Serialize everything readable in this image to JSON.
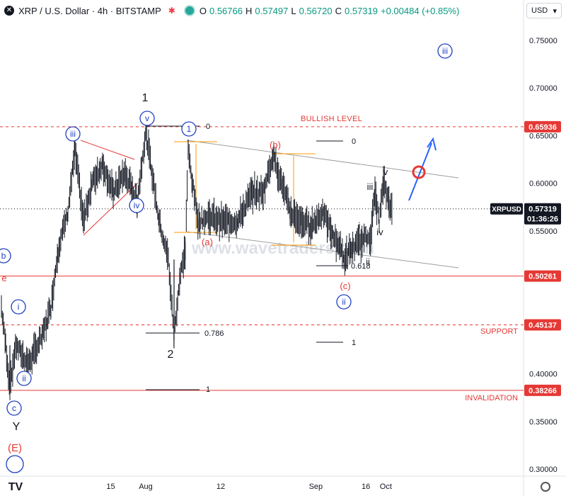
{
  "header": {
    "symbol": "XRP / U.S. Dollar · 4h · BITSTAMP",
    "ohlc": [
      {
        "k": "O",
        "v": "0.56766"
      },
      {
        "k": "H",
        "v": "0.57497"
      },
      {
        "k": "L",
        "v": "0.56720"
      },
      {
        "k": "C",
        "v": "0.57319"
      }
    ],
    "change": "+0.00484 (+0.85%)"
  },
  "currency": "USD",
  "watermark": "www.wavetraders.com",
  "colors": {
    "up": "#089981",
    "down": "#f23645",
    "red": "#e53935",
    "blue": "#1e3fbf",
    "fib": "#ff9800",
    "channel": "#9e9e9e",
    "bar": "#131722"
  },
  "chart_data": {
    "type": "line",
    "ylim": [
      0.29,
      0.78
    ],
    "x_ticks": [
      "15",
      "Aug",
      "12",
      "Sep",
      "16",
      "Oct"
    ],
    "y_ticks": [
      "0.75000",
      "0.70000",
      "0.65000",
      "0.60000",
      "0.55000",
      "0.50000",
      "0.45000",
      "0.40000",
      "0.35000",
      "0.30000"
    ],
    "x_days": [
      -7,
      0,
      15,
      34,
      44,
      48
    ],
    "series": [
      {
        "x": [
          0,
          5,
          9,
          13,
          17,
          21,
          25,
          29,
          31,
          33,
          34,
          35,
          36,
          37,
          38,
          41,
          44,
          46
        ],
        "y": [
          0.47,
          0.44,
          0.42,
          0.46,
          0.49,
          0.45,
          0.41,
          0.5,
          0.45,
          0.38,
          0.43,
          0.5,
          0.53,
          0.56,
          0.59,
          0.6,
          0.51,
          0.49
        ]
      }
    ],
    "price_labels": [
      {
        "text": "0.65936",
        "value": 0.65936,
        "kind": "red"
      },
      {
        "text": "0.57319",
        "value": 0.57319,
        "kind": "current"
      },
      {
        "text": "01:36:26",
        "value": 0.5625,
        "kind": "current"
      },
      {
        "text": "0.50261",
        "value": 0.50261,
        "kind": "red"
      },
      {
        "text": "0.45137",
        "value": 0.45137,
        "kind": "red"
      },
      {
        "text": "0.38266",
        "value": 0.38266,
        "kind": "red"
      }
    ],
    "current_tag": "XRPUSD",
    "levels": [
      {
        "name": "BULLISH LEVEL",
        "value": 0.65936
      },
      {
        "name": "SUPPORT",
        "value": 0.45137
      },
      {
        "name": "INVALIDATION",
        "value": 0.38266
      }
    ],
    "fib_labels": [
      "0",
      "0",
      "0.618",
      "0.786",
      "1",
      "1"
    ],
    "wave_labels": {
      "black": [
        "1",
        "2",
        "iii",
        "v",
        "i",
        "iv",
        "ii",
        "Y"
      ],
      "circled_blue": [
        "b",
        "i",
        "ii",
        "c",
        "iii",
        "iv",
        "v",
        "1",
        "ii",
        "iii"
      ],
      "red": [
        "e",
        "(E)",
        "(a)",
        "(b)",
        "(c)"
      ]
    }
  }
}
